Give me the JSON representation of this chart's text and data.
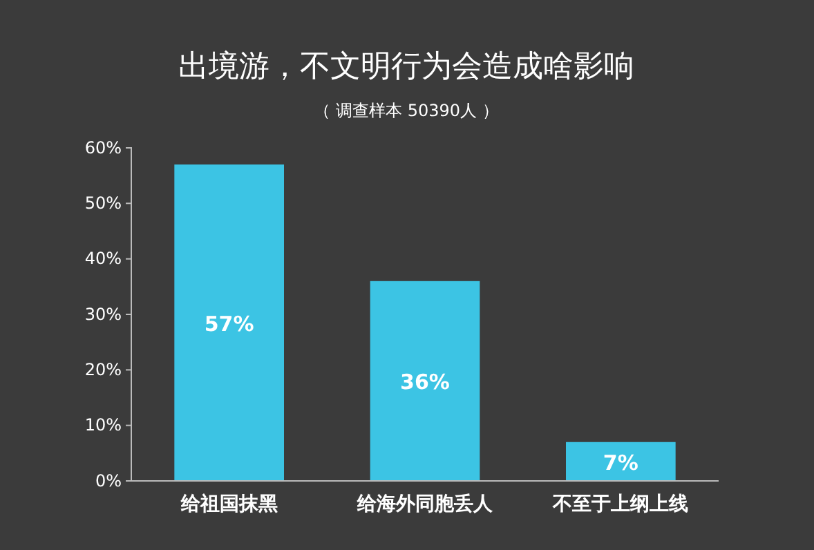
{
  "chart_data": {
    "type": "bar",
    "title": "出境游，不文明行为会造成啥影响",
    "subtitle": "（ 调查样本 50390人 ）",
    "categories": [
      "给祖国抹黑",
      "给海外同胞丢人",
      "不至于上纲上线"
    ],
    "values": [
      57,
      36,
      7
    ],
    "color": "#3cc4e4",
    "value_labels": [
      "57%",
      "36%",
      "7%"
    ],
    "ylim": [
      0,
      60
    ],
    "yticks": [
      {
        "value": 0,
        "label": "0%"
      },
      {
        "value": 10,
        "label": "10%"
      },
      {
        "value": 20,
        "label": "20%"
      },
      {
        "value": 30,
        "label": "30%"
      },
      {
        "value": 40,
        "label": "40%"
      },
      {
        "value": 50,
        "label": "50%"
      },
      {
        "value": 60,
        "label": "60%"
      }
    ],
    "grid": false
  }
}
